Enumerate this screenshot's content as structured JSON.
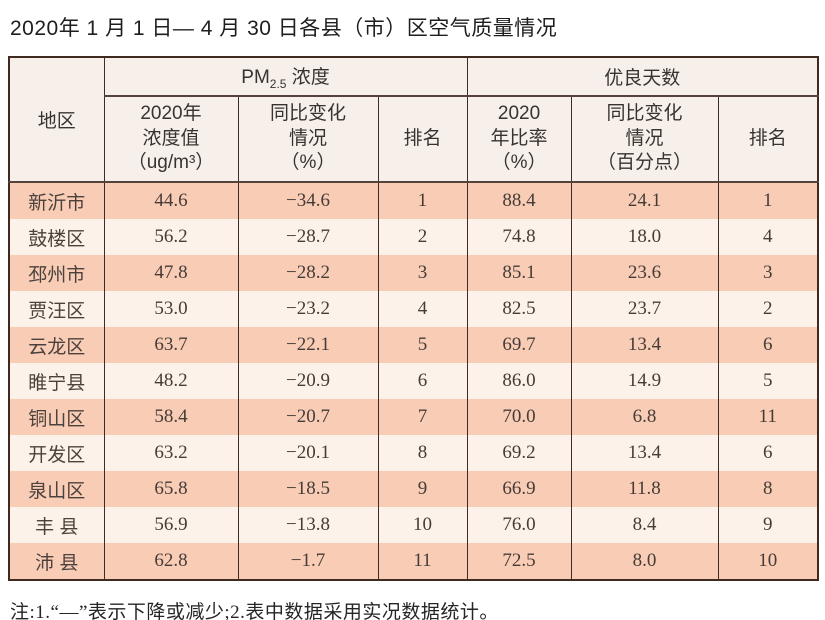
{
  "page": {
    "title": "2020年 1 月 1 日— 4 月 30 日各县（市）区空气质量情况",
    "note": "注:1.“—”表示下降或减少;2.表中数据采用实况数据统计。"
  },
  "table": {
    "region_header": "地区",
    "pm_group": {
      "prefix": "PM",
      "sub": "2.5",
      "suffix": " 浓度"
    },
    "good_group": "优良天数",
    "sub_headers": [
      "2020年\n浓度值\n（ug/m³）",
      "同比变化\n情况\n（%）",
      "排名",
      "2020\n年比率\n（%）",
      "同比变化\n情况\n（百分点）",
      "排名"
    ],
    "rows": [
      {
        "region": "新沂市",
        "cells": [
          "44.6",
          "−34.6",
          "1",
          "88.4",
          "24.1",
          "1"
        ]
      },
      {
        "region": "鼓楼区",
        "cells": [
          "56.2",
          "−28.7",
          "2",
          "74.8",
          "18.0",
          "4"
        ]
      },
      {
        "region": "邳州市",
        "cells": [
          "47.8",
          "−28.2",
          "3",
          "85.1",
          "23.6",
          "3"
        ]
      },
      {
        "region": "贾汪区",
        "cells": [
          "53.0",
          "−23.2",
          "4",
          "82.5",
          "23.7",
          "2"
        ]
      },
      {
        "region": "云龙区",
        "cells": [
          "63.7",
          "−22.1",
          "5",
          "69.7",
          "13.4",
          "6"
        ]
      },
      {
        "region": "睢宁县",
        "cells": [
          "48.2",
          "−20.9",
          "6",
          "86.0",
          "14.9",
          "5"
        ]
      },
      {
        "region": "铜山区",
        "cells": [
          "58.4",
          "−20.7",
          "7",
          "70.0",
          "6.8",
          "11"
        ]
      },
      {
        "region": "开发区",
        "cells": [
          "63.2",
          "−20.1",
          "8",
          "69.2",
          "13.4",
          "6"
        ]
      },
      {
        "region": "泉山区",
        "cells": [
          "65.8",
          "−18.5",
          "9",
          "66.9",
          "11.8",
          "8"
        ]
      },
      {
        "region": "丰 县",
        "cells": [
          "56.9",
          "−13.8",
          "10",
          "76.0",
          "8.4",
          "9"
        ]
      },
      {
        "region": "沛 县",
        "cells": [
          "62.8",
          "−1.7",
          "11",
          "72.5",
          "8.0",
          "10"
        ]
      }
    ],
    "colors": {
      "row_odd_bg": "#f8ccb5",
      "row_even_bg": "#fdf2ea",
      "header_bg": "#f7f0ea",
      "border": "#40291f"
    }
  }
}
